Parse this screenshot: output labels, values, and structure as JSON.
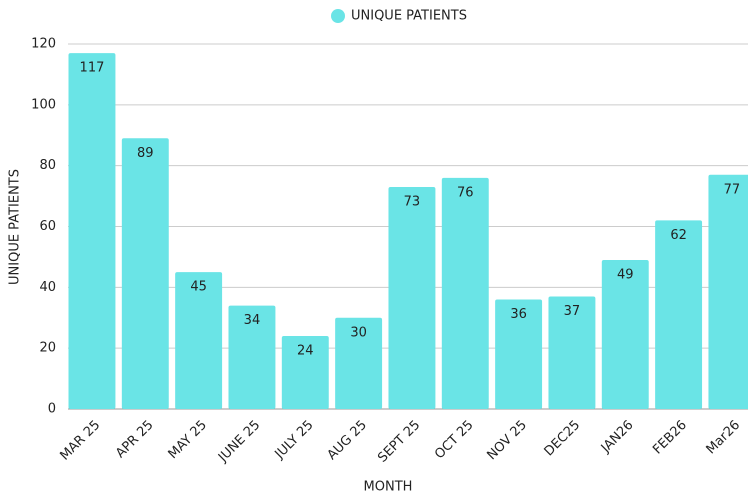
{
  "chart_data": {
    "type": "bar",
    "categories": [
      "MAR 25",
      "APR 25",
      "MAY 25",
      "JUNE 25",
      "JULY 25",
      "AUG 25",
      "SEPT 25",
      "OCT 25",
      "NOV 25",
      "DEC25",
      "JAN26",
      "FEB26",
      "Mar26"
    ],
    "series": [
      {
        "name": "UNIQUE PATIENTS",
        "color": "#6ae4e6",
        "values": [
          117,
          89,
          45,
          34,
          24,
          30,
          73,
          76,
          36,
          37,
          49,
          62,
          77
        ]
      }
    ],
    "x_label": "MONTH",
    "y_label": "UNIQUE PATIENTS",
    "ylim": [
      0,
      120
    ],
    "yticks": [
      0,
      20,
      40,
      60,
      80,
      100,
      120
    ],
    "grid": true,
    "legend": "top"
  }
}
